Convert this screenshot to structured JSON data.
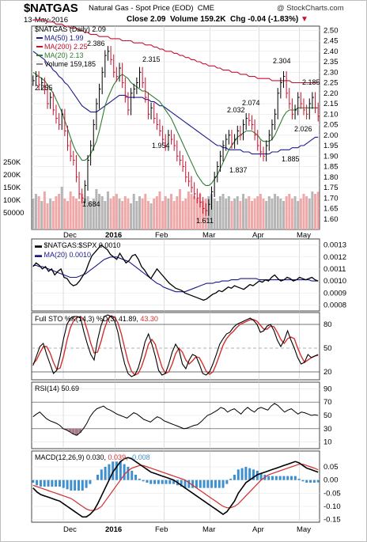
{
  "header": {
    "symbol": "$NATGAS",
    "description": "Natural Gas - Spot Price (EOD)",
    "exchange": "CME",
    "date": "13-May-2016",
    "close_label": "Close",
    "close": "2.09",
    "volume_label": "Volume",
    "volume": "159.2K",
    "chg_label": "Chg",
    "chg": "-0.04 (-1.83%)",
    "logo": "@ StockCharts.com"
  },
  "colors": {
    "ma50": "#1a1a8c",
    "ma200": "#c8102e",
    "ma20": "#2e7d32",
    "up_bar": "#000000",
    "down_bar": "#c8102e",
    "volume_up": "#b5b5b5",
    "volume_down": "#f0a7a7",
    "stoch_k": "#000000",
    "stoch_d": "#d32f2f",
    "macd_line": "#000000",
    "signal_line": "#d32f2f",
    "histogram": "#3d8fcf",
    "rsi_line": "#000000"
  },
  "x_axis": {
    "labels": [
      "Dec",
      "2016",
      "Feb",
      "Mar",
      "Apr",
      "May"
    ]
  },
  "chart_data": [
    {
      "type": "ohlc",
      "panel": "price",
      "title": "$NATGAS (Daily) 2.09",
      "legend": [
        {
          "name": "MA(50)",
          "value": "1.99"
        },
        {
          "name": "MA(200)",
          "value": "2.25"
        },
        {
          "name": "MA(20)",
          "value": "2.13"
        },
        {
          "name": "Volume",
          "value": "159,185"
        }
      ],
      "ylim": [
        1.55,
        2.52
      ],
      "yticks": [
        1.6,
        1.65,
        1.7,
        1.75,
        1.8,
        1.85,
        1.9,
        1.95,
        2.0,
        2.05,
        2.1,
        2.15,
        2.2,
        2.25,
        2.3,
        2.35,
        2.4,
        2.45,
        2.5
      ],
      "volume_ticks": [
        "250K",
        "200K",
        "150K",
        "100K",
        "50000"
      ],
      "close": [
        2.26,
        2.28,
        2.24,
        2.25,
        2.22,
        2.15,
        2.18,
        2.12,
        2.08,
        2.05,
        2.1,
        2.02,
        1.95,
        1.9,
        1.88,
        1.8,
        1.72,
        1.7,
        1.76,
        1.88,
        1.95,
        2.05,
        2.15,
        2.22,
        2.3,
        2.38,
        2.4,
        2.36,
        2.3,
        2.28,
        2.32,
        2.25,
        2.18,
        2.12,
        2.2,
        2.22,
        2.25,
        2.3,
        2.25,
        2.18,
        2.1,
        2.13,
        2.08,
        2.05,
        2.02,
        1.98,
        1.95,
        2.0,
        1.98,
        1.95,
        1.9,
        1.88,
        1.85,
        1.8,
        1.78,
        1.75,
        1.72,
        1.7,
        1.68,
        1.65,
        1.64,
        1.67,
        1.73,
        1.8,
        1.85,
        1.9,
        1.95,
        1.98,
        2.0,
        1.96,
        1.98,
        2.02,
        2.0,
        2.05,
        2.08,
        2.07,
        2.05,
        2.0,
        1.95,
        1.92,
        1.9,
        1.95,
        2.0,
        2.05,
        2.1,
        2.2,
        2.25,
        2.28,
        2.2,
        2.15,
        2.1,
        2.12,
        2.18,
        2.15,
        2.12,
        2.1,
        2.15,
        2.18,
        2.13,
        2.09
      ],
      "ma50": [
        2.4,
        2.39,
        2.38,
        2.37,
        2.36,
        2.34,
        2.33,
        2.31,
        2.3,
        2.28,
        2.27,
        2.25,
        2.24,
        2.22,
        2.2,
        2.18,
        2.16,
        2.14,
        2.13,
        2.12,
        2.11,
        2.11,
        2.11,
        2.12,
        2.13,
        2.14,
        2.15,
        2.16,
        2.17,
        2.18,
        2.19,
        2.19,
        2.19,
        2.18,
        2.18,
        2.18,
        2.18,
        2.18,
        2.18,
        2.17,
        2.17,
        2.16,
        2.16,
        2.15,
        2.14,
        2.14,
        2.13,
        2.12,
        2.11,
        2.1,
        2.09,
        2.08,
        2.07,
        2.06,
        2.05,
        2.04,
        2.03,
        2.02,
        2.01,
        2.0,
        1.99,
        1.98,
        1.97,
        1.96,
        1.95,
        1.95,
        1.94,
        1.94,
        1.93,
        1.93,
        1.93,
        1.93,
        1.93,
        1.92,
        1.92,
        1.92,
        1.91,
        1.91,
        1.91,
        1.91,
        1.91,
        1.91,
        1.91,
        1.92,
        1.92,
        1.92,
        1.93,
        1.93,
        1.93,
        1.93,
        1.94,
        1.94,
        1.94,
        1.95,
        1.95,
        1.96,
        1.97,
        1.98,
        1.99,
        1.99
      ],
      "ma200": [
        2.55,
        2.55,
        2.55,
        2.55,
        2.55,
        2.54,
        2.54,
        2.54,
        2.53,
        2.53,
        2.53,
        2.52,
        2.52,
        2.51,
        2.51,
        2.51,
        2.5,
        2.5,
        2.49,
        2.49,
        2.48,
        2.48,
        2.48,
        2.47,
        2.47,
        2.47,
        2.47,
        2.46,
        2.46,
        2.46,
        2.46,
        2.45,
        2.45,
        2.45,
        2.45,
        2.44,
        2.44,
        2.44,
        2.44,
        2.43,
        2.43,
        2.43,
        2.42,
        2.42,
        2.41,
        2.41,
        2.4,
        2.4,
        2.4,
        2.39,
        2.39,
        2.38,
        2.38,
        2.37,
        2.37,
        2.36,
        2.36,
        2.35,
        2.35,
        2.34,
        2.34,
        2.33,
        2.33,
        2.33,
        2.32,
        2.32,
        2.31,
        2.31,
        2.31,
        2.3,
        2.3,
        2.3,
        2.29,
        2.29,
        2.29,
        2.28,
        2.28,
        2.28,
        2.27,
        2.27,
        2.27,
        2.27,
        2.27,
        2.26,
        2.26,
        2.26,
        2.26,
        2.26,
        2.26,
        2.26,
        2.25,
        2.25,
        2.25,
        2.25,
        2.25,
        2.25,
        2.25,
        2.25,
        2.25,
        2.25
      ],
      "ma20": [
        2.3,
        2.29,
        2.28,
        2.27,
        2.26,
        2.24,
        2.22,
        2.2,
        2.17,
        2.14,
        2.11,
        2.07,
        2.03,
        1.99,
        1.95,
        1.92,
        1.9,
        1.88,
        1.88,
        1.89,
        1.91,
        1.94,
        1.97,
        2.02,
        2.08,
        2.14,
        2.18,
        2.21,
        2.24,
        2.26,
        2.28,
        2.29,
        2.28,
        2.27,
        2.25,
        2.24,
        2.23,
        2.22,
        2.21,
        2.21,
        2.2,
        2.19,
        2.18,
        2.17,
        2.16,
        2.14,
        2.12,
        2.1,
        2.08,
        2.05,
        2.02,
        1.99,
        1.96,
        1.93,
        1.9,
        1.87,
        1.84,
        1.81,
        1.79,
        1.77,
        1.76,
        1.76,
        1.77,
        1.79,
        1.81,
        1.84,
        1.87,
        1.9,
        1.93,
        1.95,
        1.97,
        1.99,
        2.0,
        2.01,
        2.02,
        2.02,
        2.02,
        2.01,
        2.0,
        1.98,
        1.97,
        1.97,
        1.97,
        1.98,
        2.0,
        2.03,
        2.06,
        2.09,
        2.11,
        2.12,
        2.12,
        2.12,
        2.13,
        2.13,
        2.13,
        2.13,
        2.13,
        2.13,
        2.13,
        2.13
      ],
      "volume": [
        130,
        150,
        140,
        120,
        160,
        110,
        130,
        120,
        140,
        150,
        180,
        130,
        120,
        160,
        140,
        130,
        120,
        150,
        130,
        140,
        120,
        130,
        170,
        150,
        140,
        120,
        160,
        130,
        140,
        150,
        130,
        120,
        140,
        130,
        110,
        150,
        120,
        140,
        130,
        150,
        120,
        110,
        130,
        140,
        160,
        120,
        140,
        130,
        150,
        120,
        140,
        170,
        120,
        130,
        160,
        150,
        140,
        130,
        150,
        120,
        130,
        140,
        150,
        130,
        120,
        140,
        150,
        130,
        140,
        120,
        130,
        140,
        120,
        150,
        130,
        140,
        120,
        130,
        140,
        150,
        130,
        120,
        140,
        130,
        150,
        140,
        130,
        120,
        140,
        150,
        130,
        140,
        120,
        130,
        150,
        140,
        130,
        160,
        150,
        159
      ]
    },
    {
      "type": "line",
      "panel": "ratio",
      "series": [
        {
          "name": "$NATGAS:$SPX",
          "value": "0.0010"
        },
        {
          "name": "MA(20)",
          "value": "0.0010"
        }
      ],
      "ylim": [
        0.00075,
        0.00135
      ],
      "yticks": [
        "0.0013",
        "0.0012",
        "0.0011",
        "0.0010",
        "0.0009",
        "0.0008"
      ],
      "ratio": [
        0.00112,
        0.00115,
        0.00113,
        0.0011,
        0.00112,
        0.00108,
        0.0011,
        0.00105,
        0.00108,
        0.0011,
        0.00103,
        0.00102,
        0.00098,
        0.00096,
        0.00097,
        0.001,
        0.00104,
        0.00108,
        0.00115,
        0.00121,
        0.00124,
        0.00127,
        0.0013,
        0.00128,
        0.00126,
        0.00122,
        0.0012,
        0.00118,
        0.00123,
        0.00119,
        0.00115,
        0.00117,
        0.00121,
        0.00122,
        0.00118,
        0.00112,
        0.00109,
        0.00105,
        0.00102,
        0.00106,
        0.0011,
        0.00107,
        0.00104,
        0.00101,
        0.00098,
        0.00096,
        0.00094,
        0.00093,
        0.00092,
        0.0009,
        0.00089,
        0.00088,
        0.00087,
        0.00086,
        0.00085,
        0.00084,
        0.00085,
        0.00087,
        0.00089,
        0.0009,
        0.00092,
        0.00091,
        0.00093,
        0.00095,
        0.00094,
        0.00096,
        0.00095,
        0.00094,
        0.00093,
        0.00095,
        0.00097,
        0.00096,
        0.00098,
        0.001,
        0.00099,
        0.00101,
        0.001,
        0.00103,
        0.00105,
        0.00102,
        0.001,
        0.00101,
        0.00103,
        0.00102,
        0.001,
        0.00101,
        0.00103,
        0.00102,
        0.00101,
        0.00102,
        0.00103,
        0.00101,
        0.001
      ],
      "ma20": [
        0.00113,
        0.00113,
        0.00112,
        0.00112,
        0.00111,
        0.0011,
        0.00109,
        0.00108,
        0.00107,
        0.00106,
        0.00105,
        0.00104,
        0.00103,
        0.00103,
        0.00103,
        0.00104,
        0.00105,
        0.00106,
        0.00108,
        0.0011,
        0.00112,
        0.00114,
        0.00116,
        0.00118,
        0.00119,
        0.0012,
        0.0012,
        0.0012,
        0.00119,
        0.00118,
        0.00117,
        0.00116,
        0.00114,
        0.00112,
        0.0011,
        0.00108,
        0.00106,
        0.00104,
        0.00102,
        0.001,
        0.00098,
        0.00097,
        0.00095,
        0.00094,
        0.00093,
        0.00092,
        0.00091,
        0.00091,
        0.00091,
        0.00091,
        0.00092,
        0.00093,
        0.00094,
        0.00095,
        0.00096,
        0.00097,
        0.00098,
        0.00098,
        0.00098,
        0.00099,
        0.00099,
        0.001,
        0.001,
        0.001,
        0.00101,
        0.00101,
        0.00101,
        0.00102,
        0.00102,
        0.00102,
        0.00102,
        0.00102,
        0.00102,
        0.00101,
        0.00101,
        0.00101,
        0.00101,
        0.00101,
        0.00101,
        0.00101,
        0.00101,
        0.00101,
        0.00101,
        0.00101,
        0.00101,
        0.00101,
        0.00101,
        0.00101,
        0.00101,
        0.00101,
        0.001,
        0.001,
        0.001
      ]
    },
    {
      "type": "line",
      "panel": "stochastic",
      "title": "Full STO %K(14,3) %D(3)",
      "k_value": "41.89",
      "d_value": "43.30",
      "ylim": [
        10,
        95
      ],
      "yticks": [
        20,
        50,
        80
      ],
      "k": [
        28,
        40,
        52,
        56,
        42,
        30,
        18,
        22,
        40,
        62,
        80,
        88,
        90,
        90,
        88,
        70,
        55,
        42,
        35,
        60,
        78,
        90,
        92,
        90,
        85,
        70,
        48,
        30,
        18,
        14,
        16,
        25,
        40,
        58,
        68,
        55,
        40,
        22,
        16,
        18,
        30,
        45,
        55,
        48,
        30,
        24,
        35,
        42,
        40,
        30,
        18,
        16,
        20,
        30,
        42,
        55,
        62,
        68,
        70,
        76,
        80,
        82,
        84,
        86,
        88,
        85,
        80,
        70,
        72,
        78,
        80,
        72,
        60,
        52,
        60,
        72,
        60,
        50,
        38,
        30,
        32,
        42,
        38,
        40,
        42
      ],
      "d": [
        30,
        35,
        44,
        52,
        52,
        44,
        32,
        23,
        25,
        40,
        60,
        76,
        85,
        89,
        90,
        86,
        72,
        56,
        44,
        45,
        58,
        74,
        86,
        91,
        89,
        82,
        68,
        50,
        33,
        21,
        16,
        18,
        27,
        40,
        55,
        61,
        55,
        40,
        26,
        18,
        20,
        30,
        43,
        50,
        45,
        35,
        30,
        34,
        39,
        38,
        30,
        21,
        17,
        20,
        30,
        42,
        54,
        62,
        67,
        71,
        76,
        80,
        82,
        84,
        86,
        86,
        84,
        79,
        74,
        74,
        78,
        77,
        70,
        61,
        56,
        62,
        64,
        62,
        50,
        40,
        32,
        35,
        38,
        40,
        41
      ]
    },
    {
      "type": "line",
      "panel": "rsi",
      "title": "RSI(14)",
      "value": "50.69",
      "ylim": [
        0,
        100
      ],
      "yticks": [
        10,
        30,
        50,
        70,
        90
      ],
      "rsi": [
        48,
        52,
        55,
        50,
        45,
        42,
        40,
        38,
        35,
        30,
        28,
        25,
        22,
        20,
        24,
        30,
        38,
        48,
        55,
        60,
        62,
        64,
        60,
        58,
        55,
        52,
        50,
        48,
        46,
        50,
        54,
        52,
        48,
        44,
        42,
        40,
        44,
        48,
        46,
        42,
        40,
        38,
        36,
        34,
        32,
        30,
        31,
        33,
        35,
        36,
        40,
        45,
        50,
        52,
        55,
        58,
        62,
        60,
        55,
        58,
        60,
        56,
        52,
        58,
        62,
        58,
        55,
        60,
        62,
        60,
        58,
        64,
        68,
        65,
        60,
        55,
        58,
        60,
        56,
        52,
        55,
        54,
        52,
        50,
        51,
        50
      ]
    },
    {
      "type": "line",
      "panel": "macd",
      "title": "MACD(12,26,9)",
      "macd_value": "0.030",
      "signal_value": "0.039",
      "hist_value": "-0.008",
      "ylim": [
        -0.16,
        0.11
      ],
      "yticks": [
        -0.15,
        -0.1,
        -0.05,
        0.0,
        0.05
      ],
      "macd": [
        -0.03,
        -0.045,
        -0.055,
        -0.06,
        -0.065,
        -0.07,
        -0.075,
        -0.08,
        -0.09,
        -0.1,
        -0.11,
        -0.12,
        -0.13,
        -0.14,
        -0.14,
        -0.13,
        -0.115,
        -0.09,
        -0.06,
        -0.03,
        0.0,
        0.03,
        0.05,
        0.07,
        0.08,
        0.085,
        0.08,
        0.07,
        0.06,
        0.05,
        0.04,
        0.03,
        0.025,
        0.02,
        0.015,
        0.01,
        0.005,
        0.0,
        -0.01,
        -0.02,
        -0.03,
        -0.04,
        -0.05,
        -0.06,
        -0.07,
        -0.08,
        -0.09,
        -0.1,
        -0.11,
        -0.12,
        -0.13,
        -0.12,
        -0.1,
        -0.08,
        -0.05,
        -0.03,
        -0.01,
        0.0,
        0.01,
        0.02,
        0.025,
        0.03,
        0.035,
        0.04,
        0.045,
        0.05,
        0.055,
        0.06,
        0.065,
        0.07,
        0.065,
        0.055,
        0.045,
        0.04,
        0.035,
        0.03
      ],
      "signal": [
        -0.02,
        -0.025,
        -0.03,
        -0.035,
        -0.04,
        -0.045,
        -0.05,
        -0.055,
        -0.06,
        -0.065,
        -0.07,
        -0.08,
        -0.09,
        -0.1,
        -0.11,
        -0.115,
        -0.115,
        -0.11,
        -0.1,
        -0.08,
        -0.06,
        -0.04,
        -0.02,
        0.0,
        0.02,
        0.035,
        0.045,
        0.05,
        0.055,
        0.055,
        0.05,
        0.045,
        0.04,
        0.035,
        0.03,
        0.025,
        0.02,
        0.015,
        0.01,
        0.005,
        0.0,
        -0.01,
        -0.02,
        -0.03,
        -0.04,
        -0.05,
        -0.06,
        -0.07,
        -0.08,
        -0.09,
        -0.1,
        -0.105,
        -0.105,
        -0.1,
        -0.09,
        -0.075,
        -0.06,
        -0.045,
        -0.03,
        -0.015,
        0.0,
        0.01,
        0.02,
        0.025,
        0.03,
        0.035,
        0.04,
        0.045,
        0.05,
        0.055,
        0.06,
        0.06,
        0.055,
        0.05,
        0.045,
        0.039
      ]
    }
  ],
  "price_annotations": [
    "2.386",
    "2.315",
    "2.255",
    "2.304",
    "2.185",
    "2.032",
    "2.074",
    "2.026",
    "1.954",
    "1.885",
    "1.837",
    "1.684",
    "1.611"
  ]
}
